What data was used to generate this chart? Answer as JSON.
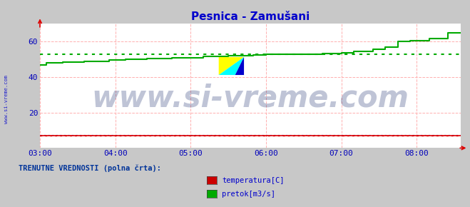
{
  "title": "Pesnica - Zamušani",
  "title_color": "#0000cc",
  "fig_bg_color": "#c8c8c8",
  "plot_bg_color": "#ffffff",
  "grid_color": "#ffb0b0",
  "xlim": [
    180,
    515
  ],
  "ylim": [
    0,
    70
  ],
  "yticks": [
    20,
    40,
    60
  ],
  "xticks": [
    180,
    240,
    300,
    360,
    420,
    480
  ],
  "xtick_labels": [
    "03:00",
    "04:00",
    "05:00",
    "06:00",
    "07:00",
    "08:00"
  ],
  "avg_pretok_y": 53,
  "avg_temp_y": 7,
  "green_line_color": "#00aa00",
  "red_line_color": "#dd0000",
  "blue_line_color": "#4444dd",
  "green_x": [
    180,
    185,
    185,
    198,
    198,
    215,
    215,
    235,
    235,
    248,
    248,
    265,
    265,
    285,
    285,
    295,
    295,
    310,
    310,
    330,
    330,
    350,
    350,
    360,
    360,
    375,
    375,
    390,
    390,
    405,
    405,
    420,
    420,
    430,
    430,
    445,
    445,
    455,
    455,
    465,
    465,
    475,
    475,
    490,
    490,
    505,
    505,
    515
  ],
  "green_y": [
    47,
    47,
    48,
    48,
    48.5,
    48.5,
    49,
    49,
    49.5,
    49.5,
    50,
    50,
    50.5,
    50.5,
    51,
    51,
    51,
    51,
    51.5,
    51.5,
    52,
    52,
    52.5,
    52.5,
    53,
    53,
    53,
    53,
    53,
    53,
    53.2,
    53.2,
    53.5,
    53.5,
    54.5,
    54.5,
    55.5,
    55.5,
    57,
    57,
    60,
    60,
    60.5,
    60.5,
    61.5,
    61.5,
    65,
    65
  ],
  "red_x": [
    180,
    270,
    420,
    515
  ],
  "red_y": [
    7,
    7,
    7,
    7
  ],
  "blue_x": [
    180,
    270,
    420,
    515
  ],
  "blue_y": [
    7,
    7,
    7,
    7
  ],
  "watermark": "www.si-vreme.com",
  "watermark_color": "#1a2e6e",
  "watermark_alpha": 0.28,
  "watermark_fontsize": 30,
  "sidebar_text": "www.si-vreme.com",
  "bottom_label": "TRENUTNE VREDNOSTI (polna črta):",
  "legend_items": [
    {
      "label": "temperatura[C]",
      "color": "#cc0000"
    },
    {
      "label": "pretok[m3/s]",
      "color": "#00aa00"
    }
  ],
  "tick_color": "#0000bb",
  "tick_fontsize": 8
}
